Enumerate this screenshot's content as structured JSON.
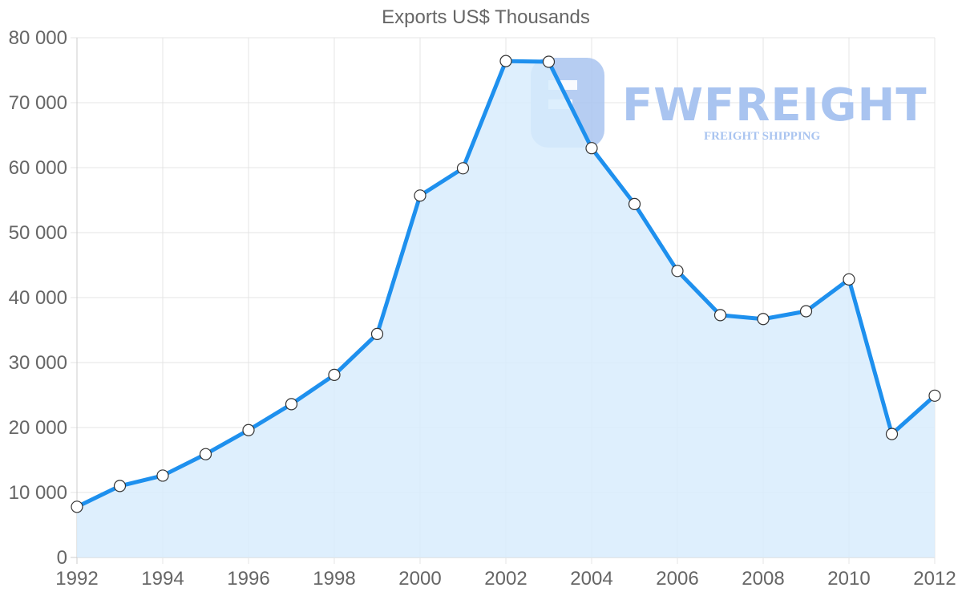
{
  "chart_data": {
    "type": "area",
    "title": "Exports US$ Thousands",
    "xlabel": "",
    "ylabel": "",
    "x": [
      1992,
      1993,
      1994,
      1995,
      1996,
      1997,
      1998,
      1999,
      2000,
      2001,
      2002,
      2003,
      2004,
      2005,
      2006,
      2007,
      2008,
      2009,
      2010,
      2011,
      2012
    ],
    "series": [
      {
        "name": "Exports US$ Thousands",
        "values": [
          7800,
          11000,
          12600,
          15900,
          19600,
          23600,
          28100,
          34400,
          55700,
          59900,
          76400,
          76300,
          63000,
          54400,
          44100,
          37300,
          36700,
          37900,
          42800,
          19000,
          24900
        ],
        "color": "#1e90ee",
        "fill": "#d8ecfd"
      }
    ],
    "ylim": [
      0,
      80000
    ],
    "xlim": [
      1992,
      2012
    ],
    "y_ticks": [
      "0",
      "10 000",
      "20 000",
      "30 000",
      "40 000",
      "50 000",
      "60 000",
      "70 000",
      "80 000"
    ],
    "x_ticks": [
      "1992",
      "1994",
      "1996",
      "1998",
      "2000",
      "2002",
      "2004",
      "2006",
      "2008",
      "2010",
      "2012"
    ],
    "grid": true,
    "legend": "none"
  },
  "watermark": {
    "brand": "FWFREIGHT",
    "tagline": "FREIGHT SHIPPING"
  }
}
